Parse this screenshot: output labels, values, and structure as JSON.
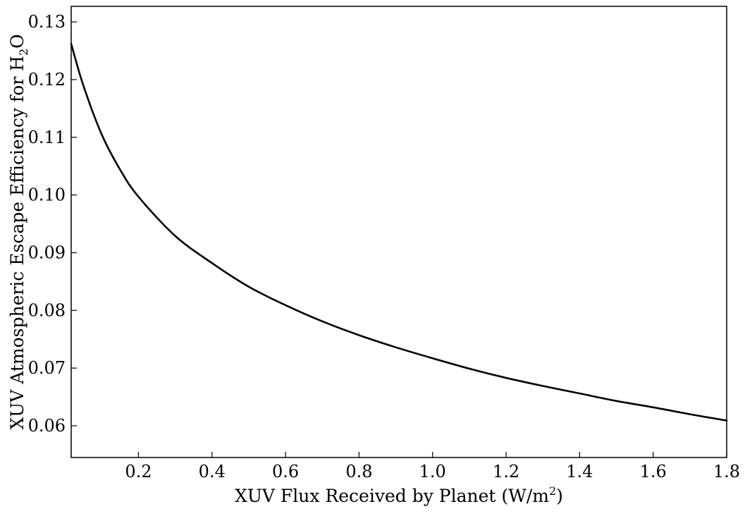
{
  "chart_data": {
    "type": "line",
    "title": "",
    "xlabel": {
      "main": "XUV Flux Received by Planet (W/m",
      "sup": "2",
      "end": ")"
    },
    "ylabel": {
      "main": "XUV Atmospheric Escape Efficiency for H",
      "sub": "2",
      "end": "O"
    },
    "xlim": [
      0.017,
      1.8
    ],
    "ylim": [
      0.0545,
      0.1327
    ],
    "xticks": [
      {
        "value": 0.2,
        "label": "0.2"
      },
      {
        "value": 0.4,
        "label": "0.4"
      },
      {
        "value": 0.6,
        "label": "0.6"
      },
      {
        "value": 0.8,
        "label": "0.8"
      },
      {
        "value": 1.0,
        "label": "1.0"
      },
      {
        "value": 1.2,
        "label": "1.2"
      },
      {
        "value": 1.4,
        "label": "1.4"
      },
      {
        "value": 1.6,
        "label": "1.6"
      },
      {
        "value": 1.8,
        "label": "1.8"
      }
    ],
    "yticks": [
      {
        "value": 0.06,
        "label": "0.06"
      },
      {
        "value": 0.07,
        "label": "0.07"
      },
      {
        "value": 0.08,
        "label": "0.08"
      },
      {
        "value": 0.09,
        "label": "0.09"
      },
      {
        "value": 0.1,
        "label": "0.10"
      },
      {
        "value": 0.11,
        "label": "0.11"
      },
      {
        "value": 0.12,
        "label": "0.12"
      },
      {
        "value": 0.13,
        "label": "0.13"
      }
    ],
    "grid": false,
    "line_color": "#000000",
    "series": [
      {
        "x": [
          0.017,
          0.05,
          0.1,
          0.15,
          0.2,
          0.3,
          0.4,
          0.5,
          0.6,
          0.7,
          0.8,
          0.9,
          1.0,
          1.1,
          1.2,
          1.3,
          1.4,
          1.5,
          1.6,
          1.7,
          1.8
        ],
        "y": [
          0.1262,
          0.119,
          0.1105,
          0.1044,
          0.0997,
          0.0929,
          0.0882,
          0.0841,
          0.0809,
          0.0781,
          0.0757,
          0.0736,
          0.0717,
          0.0699,
          0.0683,
          0.0669,
          0.0656,
          0.0643,
          0.0632,
          0.062,
          0.0609
        ]
      }
    ]
  }
}
